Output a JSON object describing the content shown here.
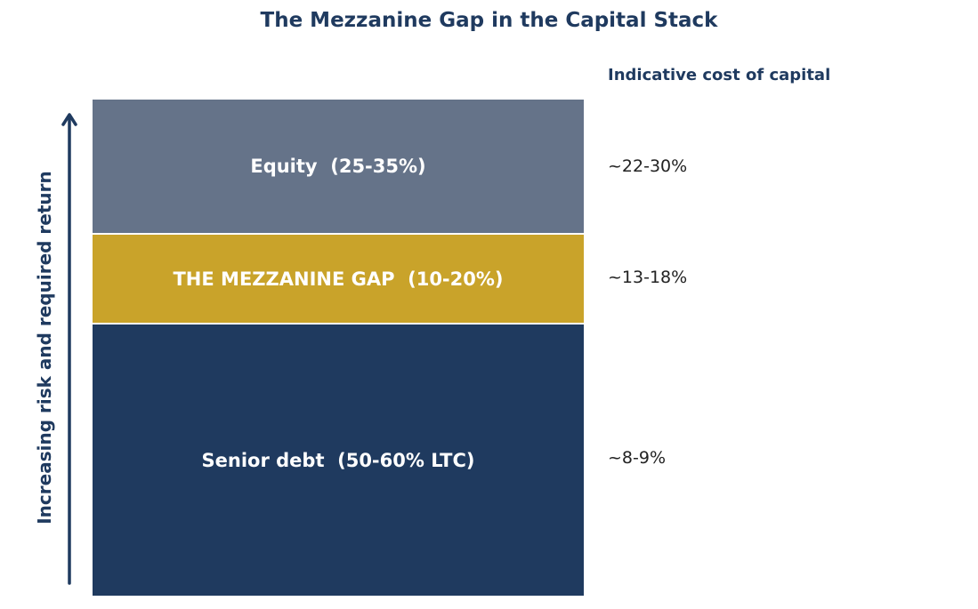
{
  "title": "The Mezzanine Gap in the Capital Stack",
  "cost_header": "Indicative cost of capital",
  "axis_label": "Increasing risk and required return",
  "layers": [
    {
      "label": "Equity  (25-35%)",
      "cost": "~22-30%",
      "color": "#657389"
    },
    {
      "label": "THE MEZZANINE GAP  (10-20%)",
      "cost": "~13-18%",
      "color": "#c9a32a"
    },
    {
      "label": "Senior debt  (50-60% LTC)",
      "cost": "~8-9%",
      "color": "#1f3a5f"
    }
  ],
  "colors": {
    "title": "#1f3a5f",
    "arrow": "#1f3a5f",
    "cost_text": "#222222"
  }
}
